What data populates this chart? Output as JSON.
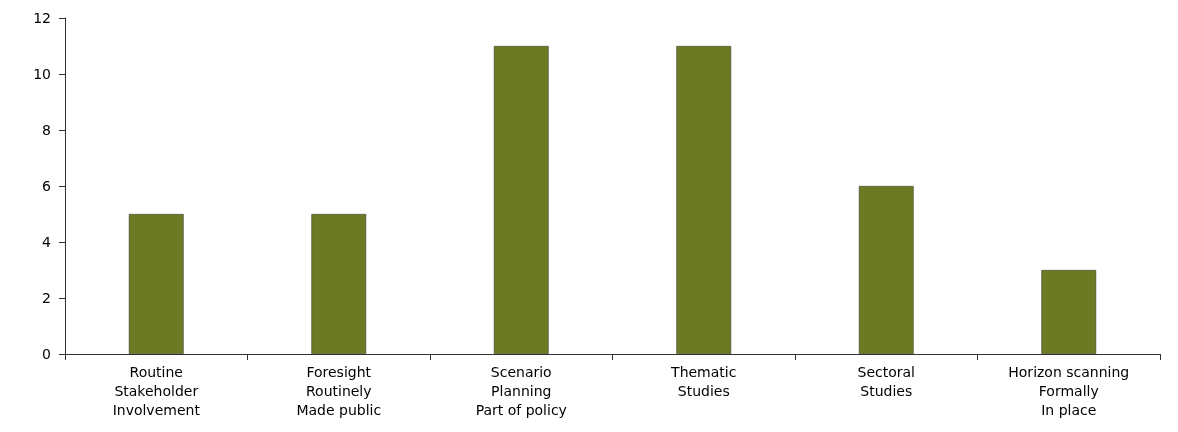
{
  "chart_data": {
    "type": "bar",
    "categories": [
      "Routine\nStakeholder\nInvolvement",
      "Foresight\nRoutinely\nMade public",
      "Scenario\nPlanning\nPart of policy",
      "Thematic\nStudies",
      "Sectoral\nStudies",
      "Horizon scanning\nFormally\nIn place"
    ],
    "values": [
      5,
      5,
      11,
      11,
      6,
      3
    ],
    "color": "#6b7a23",
    "ylim": [
      0,
      12
    ],
    "yticks": [
      0,
      2,
      4,
      6,
      8,
      10,
      12
    ],
    "grid": false
  }
}
